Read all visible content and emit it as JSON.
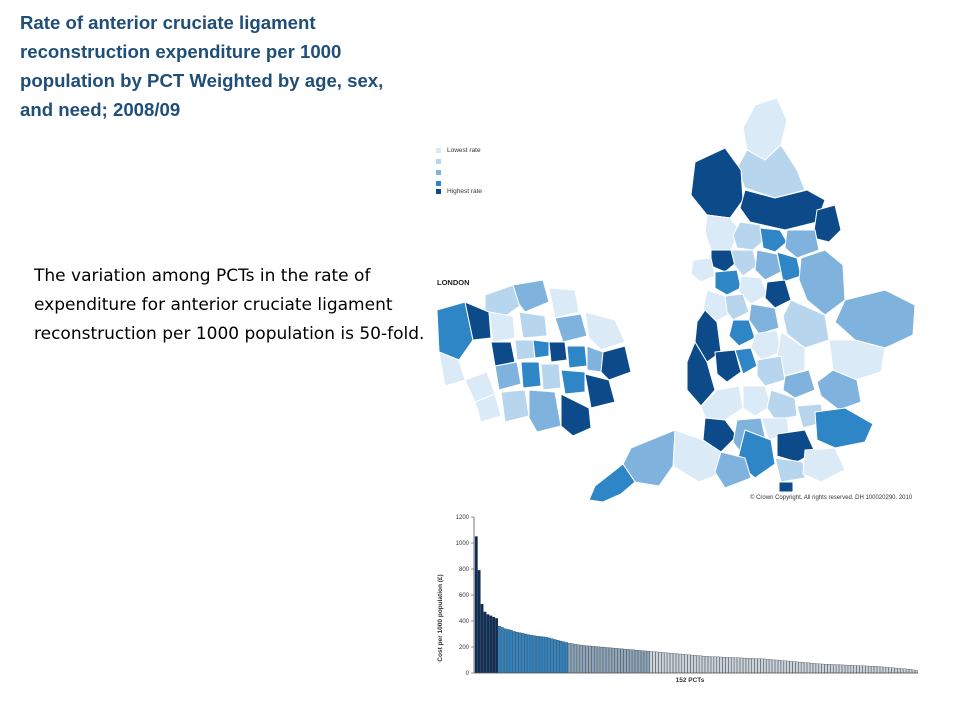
{
  "title": "Rate of anterior cruciate ligament reconstruction expenditure per 1000 population by PCT Weighted by age, sex, and need; 2008/09",
  "body_text": "The variation among PCTs in the rate of expenditure for anterior cruciate ligament reconstruction per 1000 population is 50-fold.",
  "map": {
    "legend": {
      "items": [
        {
          "label": "Lowest rate",
          "color": "#dbeaf7"
        },
        {
          "label": "",
          "color": "#b7d6ee"
        },
        {
          "label": "",
          "color": "#7fb3dd"
        },
        {
          "label": "",
          "color": "#2f86c7"
        },
        {
          "label": "Highest rate",
          "color": "#0d4a8a"
        }
      ]
    },
    "inset_label": "LONDON",
    "copyright": "© Crown Copyright. All rights reserved. DH 100020290. 2010"
  },
  "chart_data": {
    "type": "bar",
    "ylabel": "Cost per 1000 population (£)",
    "xlabel": "152 PCTs",
    "ylim": [
      0,
      1200
    ],
    "yticks": [
      "0",
      "200",
      "400",
      "600",
      "800",
      "1000",
      "1200"
    ],
    "n_bars": 152,
    "values": [
      1050,
      790,
      530,
      470,
      450,
      440,
      430,
      420,
      360,
      350,
      340,
      335,
      330,
      320,
      315,
      310,
      305,
      300,
      295,
      290,
      287,
      284,
      281,
      278,
      275,
      270,
      264,
      258,
      252,
      246,
      240,
      235,
      230,
      226,
      222,
      218,
      215,
      212,
      210,
      208,
      206,
      204,
      202,
      200,
      198,
      196,
      194,
      192,
      190,
      188,
      186,
      184,
      182,
      180,
      178,
      176,
      174,
      172,
      170,
      168,
      166,
      164,
      162,
      160,
      158,
      156,
      154,
      152,
      150,
      148,
      146,
      144,
      142,
      140,
      138,
      136,
      134,
      132,
      130,
      128,
      127,
      126,
      125,
      124,
      123,
      122,
      121,
      120,
      119,
      118,
      117,
      116,
      115,
      114,
      113,
      112,
      111,
      110,
      109,
      108,
      106,
      104,
      102,
      100,
      98,
      96,
      94,
      92,
      90,
      88,
      86,
      84,
      82,
      80,
      78,
      76,
      74,
      72,
      70,
      69,
      68,
      67,
      66,
      65,
      64,
      63,
      62,
      61,
      60,
      59,
      58,
      57,
      56,
      55,
      54,
      53,
      52,
      51,
      50,
      48,
      46,
      44,
      42,
      40,
      38,
      36,
      34,
      32,
      30,
      28,
      24,
      21
    ],
    "colors": {
      "dark": "#0d2f5c",
      "mid": "#2f86c7",
      "light": "#c9d4de",
      "outline": "#111111"
    }
  }
}
